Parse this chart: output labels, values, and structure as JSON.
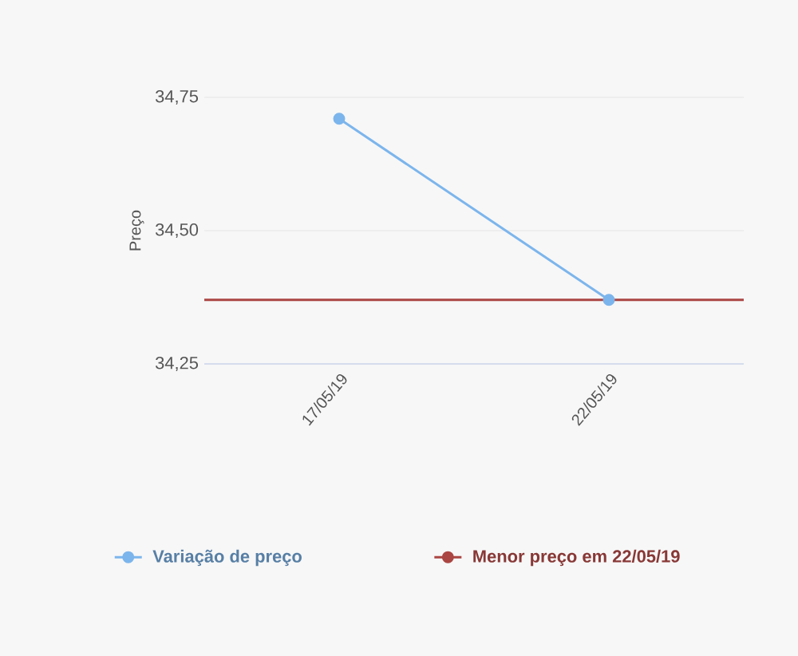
{
  "chart_data": {
    "type": "line",
    "ylabel": "Preço",
    "categories": [
      "17/05/19",
      "22/05/19"
    ],
    "series": [
      {
        "name": "Variação de preço",
        "color": "#7cb5ec",
        "values": [
          34.71,
          34.37
        ]
      }
    ],
    "ref_lines": [
      {
        "axis": "y",
        "value": 34.37,
        "label": "Menor preço em 22/05/19",
        "color": "#aa4643"
      }
    ],
    "ylim": [
      34.25,
      34.75
    ],
    "yticks": [
      {
        "value": 34.25,
        "label": "34,25"
      },
      {
        "value": 34.5,
        "label": "34,50"
      },
      {
        "value": 34.75,
        "label": "34,75"
      }
    ],
    "grid": "y",
    "legend": "bottom",
    "marker": "circle",
    "line_style": "solid"
  }
}
